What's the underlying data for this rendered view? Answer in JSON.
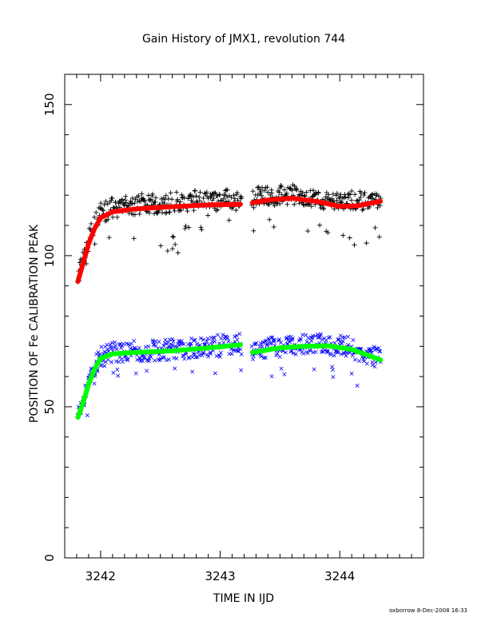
{
  "chart_data": {
    "type": "scatter",
    "title": "Gain History of JMX1, revolution 744",
    "xlabel": "TIME IN IJD",
    "ylabel": "POSITION OF Fe CALIBRATION PEAK",
    "xlim": [
      3241.7,
      3244.7
    ],
    "ylim": [
      0,
      160
    ],
    "x_ticks": [
      3242,
      3243,
      3244
    ],
    "x_tick_labels": [
      "3242",
      "3243",
      "3244"
    ],
    "y_ticks": [
      0,
      50,
      100,
      150
    ],
    "y_tick_labels": [
      "0",
      "50",
      "100",
      "150"
    ],
    "grid": false,
    "legend": "none",
    "gap": [
      3243.18,
      3243.26
    ],
    "series": [
      {
        "marker": "+",
        "color": "#000000",
        "x_range": [
          3241.81,
          3244.34
        ],
        "values_approx": [
          {
            "x": 3241.82,
            "y": 92
          },
          {
            "x": 3241.9,
            "y": 104
          },
          {
            "x": 3242.0,
            "y": 113
          },
          {
            "x": 3242.25,
            "y": 115
          },
          {
            "x": 3242.6,
            "y": 116
          },
          {
            "x": 3243.0,
            "y": 117
          },
          {
            "x": 3243.5,
            "y": 119
          },
          {
            "x": 3244.0,
            "y": 116
          },
          {
            "x": 3244.34,
            "y": 118
          }
        ]
      },
      {
        "marker": "×",
        "color": "#0000ff",
        "x_range": [
          3241.81,
          3244.34
        ],
        "values_approx": [
          {
            "x": 3241.82,
            "y": 47
          },
          {
            "x": 3241.9,
            "y": 57
          },
          {
            "x": 3242.0,
            "y": 66
          },
          {
            "x": 3242.25,
            "y": 68
          },
          {
            "x": 3242.6,
            "y": 69
          },
          {
            "x": 3243.0,
            "y": 70
          },
          {
            "x": 3243.5,
            "y": 69
          },
          {
            "x": 3244.0,
            "y": 70
          },
          {
            "x": 3244.34,
            "y": 66
          }
        ]
      },
      {
        "type": "fit-line",
        "color": "#ff0000",
        "points": [
          [
            3241.81,
            91.5
          ],
          [
            3241.85,
            97
          ],
          [
            3241.9,
            104
          ],
          [
            3241.95,
            109
          ],
          [
            3242.0,
            112.5
          ],
          [
            3242.1,
            114.5
          ],
          [
            3242.3,
            115.5
          ],
          [
            3242.6,
            116.2
          ],
          [
            3242.9,
            116.8
          ],
          [
            3243.17,
            117.0
          ],
          [
            3243.27,
            117.5
          ],
          [
            3243.4,
            118.4
          ],
          [
            3243.6,
            119.0
          ],
          [
            3243.8,
            118.0
          ],
          [
            3244.0,
            116.3
          ],
          [
            3244.15,
            116.5
          ],
          [
            3244.34,
            118.0
          ]
        ]
      },
      {
        "type": "fit-line",
        "color": "#00ff00",
        "points": [
          [
            3241.81,
            46.5
          ],
          [
            3241.85,
            51
          ],
          [
            3241.9,
            57.5
          ],
          [
            3241.95,
            62.5
          ],
          [
            3242.0,
            66
          ],
          [
            3242.1,
            67.5
          ],
          [
            3242.3,
            68.0
          ],
          [
            3242.6,
            68.5
          ],
          [
            3242.9,
            69.5
          ],
          [
            3243.17,
            70.5
          ],
          [
            3243.27,
            68.0
          ],
          [
            3243.35,
            68.5
          ],
          [
            3243.5,
            69.5
          ],
          [
            3243.7,
            70.0
          ],
          [
            3243.9,
            70.2
          ],
          [
            3244.1,
            69.0
          ],
          [
            3244.34,
            65.5
          ]
        ]
      }
    ]
  },
  "footer": {
    "credit": "oxborrow   8-Dec-2008 16:33"
  }
}
